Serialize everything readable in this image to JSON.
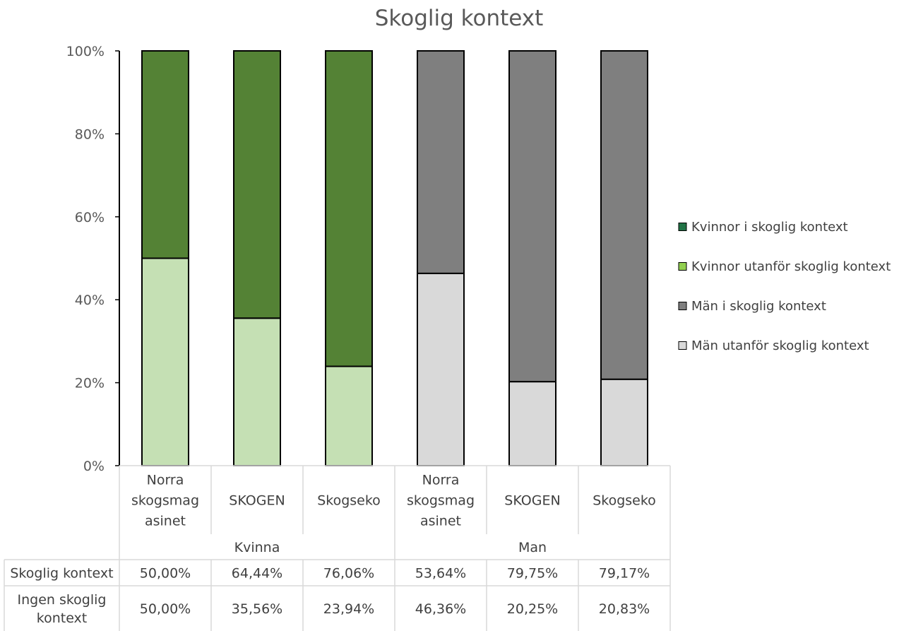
{
  "chart_data": {
    "type": "bar",
    "stacked": true,
    "percent_stacked": true,
    "title": "Skoglig kontext",
    "ylim": [
      0,
      100
    ],
    "yticks": [
      "0%",
      "20%",
      "40%",
      "60%",
      "80%",
      "100%"
    ],
    "groups": [
      {
        "label": "Kvinna",
        "categories": [
          "Norra skogsmag asinet",
          "SKOGEN",
          "Skogseko"
        ]
      },
      {
        "label": "Man",
        "categories": [
          "Norra skogsmag asinet",
          "SKOGEN",
          "Skogseko"
        ]
      }
    ],
    "category_lines": [
      [
        "Norra",
        "skogsmag",
        "asinet"
      ],
      [
        "SKOGEN"
      ],
      [
        "Skogseko"
      ],
      [
        "Norra",
        "skogsmag",
        "asinet"
      ],
      [
        "SKOGEN"
      ],
      [
        "Skogseko"
      ]
    ],
    "series": [
      {
        "name": "Kvinnor i skoglig kontext",
        "color": "#548235",
        "values": [
          50.0,
          64.44,
          76.06,
          null,
          null,
          null
        ]
      },
      {
        "name": "Kvinnor utanför skoglig kontext",
        "color": "#c5e0b4",
        "values": [
          50.0,
          35.56,
          23.94,
          null,
          null,
          null
        ]
      },
      {
        "name": "Män i skoglig kontext",
        "color": "#7f7f7f",
        "values": [
          null,
          null,
          null,
          53.64,
          79.75,
          79.17
        ]
      },
      {
        "name": "Män utanför skoglig kontext",
        "color": "#d9d9d9",
        "values": [
          null,
          null,
          null,
          46.36,
          20.25,
          20.83
        ]
      }
    ],
    "legend_position": "right",
    "legend_swatch_colors": [
      "#217346",
      "#92d050",
      "#7f7f7f",
      "#d9d9d9"
    ],
    "data_table": {
      "rows": [
        {
          "label": "Skoglig kontext",
          "label_lines": [
            "Skoglig kontext"
          ],
          "cells": [
            "50,00%",
            "64,44%",
            "76,06%",
            "53,64%",
            "79,75%",
            "79,17%"
          ]
        },
        {
          "label": "Ingen skoglig kontext",
          "label_lines": [
            "Ingen skoglig",
            "kontext"
          ],
          "cells": [
            "50,00%",
            "35,56%",
            "23,94%",
            "46,36%",
            "20,25%",
            "20,83%"
          ]
        }
      ]
    },
    "grid": false
  }
}
